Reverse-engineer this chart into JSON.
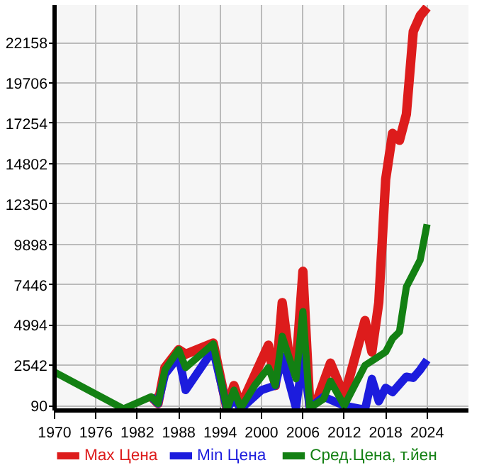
{
  "chart_data": {
    "type": "line",
    "xlim": [
      1970,
      2030
    ],
    "xticks": [
      1970,
      1976,
      1982,
      1988,
      1994,
      2000,
      2006,
      2012,
      2018,
      2024
    ],
    "ylim": [
      -200,
      24450
    ],
    "yticks": [
      90,
      2542,
      4994,
      7446,
      9898,
      12350,
      14802,
      17254,
      19706,
      22158
    ],
    "grid": true,
    "legend": "bottom",
    "line_style": "solid",
    "marker": "none",
    "series": [
      {
        "name": "Max Цена",
        "color": "#dd1c1c",
        "x": [
          1984,
          1985,
          1986,
          1988,
          1989,
          1993,
          1995,
          1996,
          1997,
          2001,
          2002,
          2003,
          2004,
          2005,
          2006,
          2007,
          2008,
          2010,
          2012,
          2015,
          2016,
          2017,
          2018,
          2019,
          2020,
          2021,
          2022,
          2023,
          2024
        ],
        "values": [
          635,
          225,
          2405,
          3495,
          3220,
          3900,
          -100,
          1315,
          90,
          3770,
          1315,
          6355,
          3085,
          2405,
          8260,
          90,
          360,
          2680,
          635,
          5265,
          3360,
          6355,
          13850,
          16650,
          16220,
          17800,
          22840,
          23790,
          24300
        ]
      },
      {
        "name": "Min Цена",
        "color": "#1c1cdd",
        "x": [
          1984,
          1985,
          1986,
          1988,
          1989,
          1993,
          1995,
          1996,
          1997,
          2000,
          2002,
          2003,
          2005,
          2006,
          2007,
          2009,
          2012,
          2015,
          2016,
          2017,
          2018,
          2019,
          2021,
          2022,
          2023,
          2024
        ],
        "values": [
          635,
          225,
          1995,
          3085,
          1040,
          3495,
          -100,
          500,
          -100,
          1040,
          1315,
          3085,
          -50,
          3085,
          -50,
          635,
          90,
          -150,
          1725,
          360,
          1180,
          910,
          1860,
          1780,
          2270,
          2870
        ]
      },
      {
        "name": "Сред.Цена, т.йен",
        "color": "#138013",
        "x": [
          1970,
          1980,
          1984,
          1985,
          1986,
          1988,
          1989,
          1993,
          1995,
          1996,
          1997,
          1999,
          2001,
          2002,
          2003,
          2005,
          2006,
          2007,
          2009,
          2010,
          2012,
          2015,
          2016,
          2018,
          2019,
          2020,
          2021,
          2023,
          2024
        ],
        "values": [
          2133,
          -100,
          635,
          225,
          2270,
          3495,
          2405,
          3850,
          -100,
          1040,
          -50,
          1315,
          2405,
          1315,
          4310,
          1725,
          5810,
          -50,
          500,
          1590,
          90,
          2540,
          2810,
          3360,
          4175,
          4585,
          7310,
          8940,
          11120
        ]
      }
    ]
  }
}
